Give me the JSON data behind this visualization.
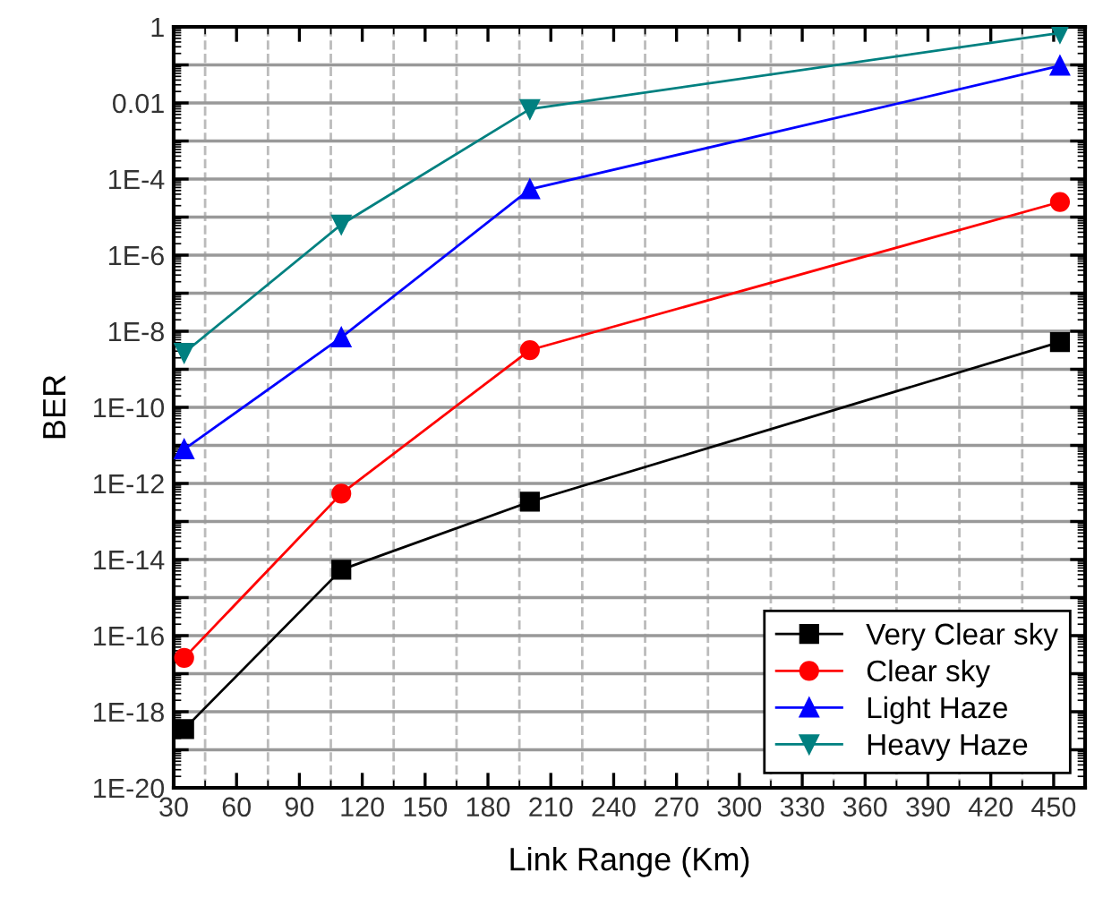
{
  "chart_data": {
    "type": "line",
    "xlabel": "Link Range (Km)",
    "ylabel": "BER",
    "x": [
      35,
      110,
      200,
      453
    ],
    "series": [
      {
        "name": "Very Clear sky",
        "color": "#000000",
        "marker": "square",
        "values": [
          3.5e-19,
          5.4e-15,
          3.3e-13,
          5.2e-09
        ]
      },
      {
        "name": "Clear sky",
        "color": "#ff0000",
        "marker": "circle",
        "values": [
          2.6e-17,
          5.4e-13,
          3.2e-09,
          2.5e-05
        ]
      },
      {
        "name": "Light Haze",
        "color": "#0000ff",
        "marker": "triangle",
        "values": [
          7.9e-12,
          6.9e-09,
          5.4e-05,
          0.095
        ]
      },
      {
        "name": "Heavy Haze",
        "color": "#008080",
        "marker": "triangle_down",
        "values": [
          2.7e-09,
          6.4e-06,
          0.0069,
          0.69
        ]
      }
    ],
    "log": "y",
    "xlim": [
      30,
      465
    ],
    "ylim": [
      1e-20,
      1
    ],
    "xticks": [
      30,
      60,
      90,
      120,
      150,
      180,
      210,
      240,
      270,
      300,
      330,
      360,
      390,
      420,
      450
    ],
    "yticks": [
      {
        "value": 1e-20,
        "label": "1E-20"
      },
      {
        "value": 1e-19,
        "label": null
      },
      {
        "value": 1e-18,
        "label": "1E-18"
      },
      {
        "value": 1e-17,
        "label": null
      },
      {
        "value": 1e-16,
        "label": "1E-16"
      },
      {
        "value": 1e-15,
        "label": null
      },
      {
        "value": 1e-14,
        "label": "1E-14"
      },
      {
        "value": 1e-13,
        "label": null
      },
      {
        "value": 1e-12,
        "label": "1E-12"
      },
      {
        "value": 1e-11,
        "label": null
      },
      {
        "value": 1e-10,
        "label": "1E-10"
      },
      {
        "value": 1e-09,
        "label": null
      },
      {
        "value": 1e-08,
        "label": "1E-8"
      },
      {
        "value": 1e-07,
        "label": null
      },
      {
        "value": 1e-06,
        "label": "1E-6"
      },
      {
        "value": 1e-05,
        "label": null
      },
      {
        "value": 0.0001,
        "label": "1E-4"
      },
      {
        "value": 0.001,
        "label": null
      },
      {
        "value": 0.01,
        "label": "0.01"
      },
      {
        "value": 0.1,
        "label": null
      },
      {
        "value": 1,
        "label": "1"
      }
    ],
    "grid": true,
    "legend": "bottom right",
    "line_style": "solid"
  }
}
